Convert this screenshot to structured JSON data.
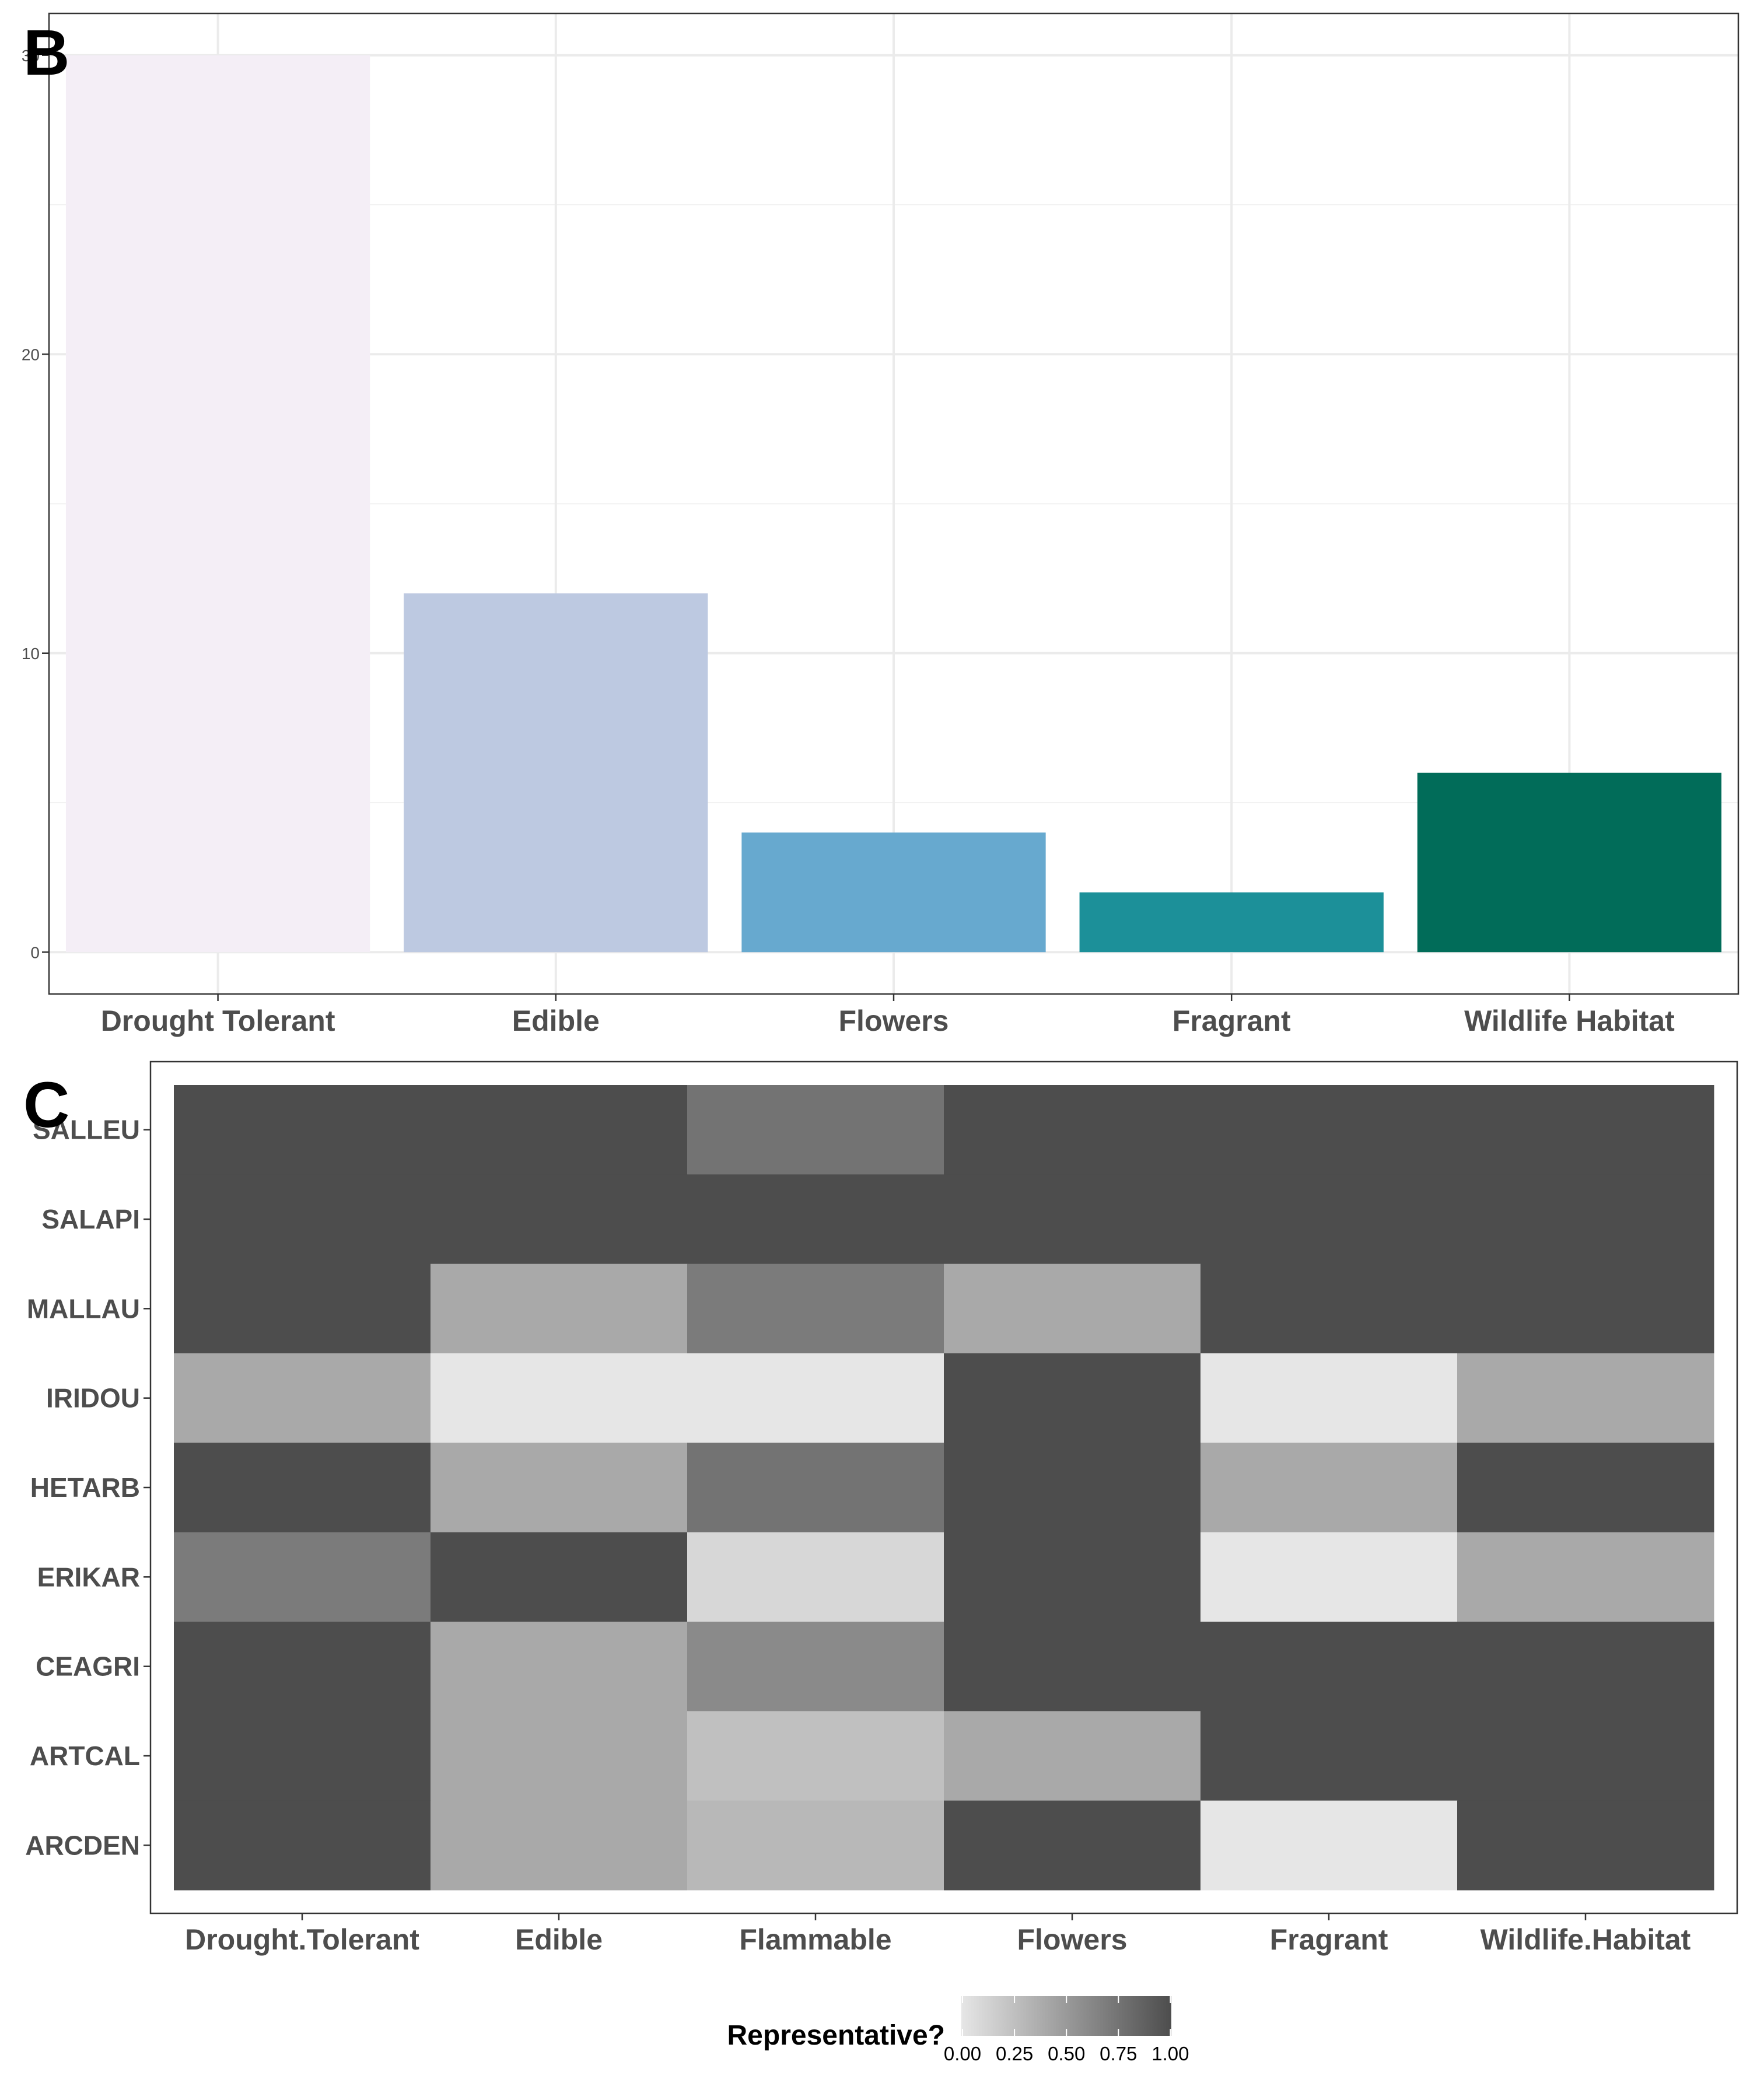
{
  "chart_data": [
    {
      "panel_label": "B",
      "type": "bar",
      "categories": [
        "Drought Tolerant",
        "Edible",
        "Flowers",
        "Fragrant",
        "Wildlife Habitat"
      ],
      "values": [
        30,
        12,
        4,
        2,
        6
      ],
      "colors": [
        "#f4eef6",
        "#bdc9e1",
        "#67a9cf",
        "#1c9099",
        "#016c59"
      ],
      "ylim": [
        -1.4,
        31.4
      ],
      "yticks": [
        0,
        10,
        20,
        30
      ],
      "ytick_labels": [
        "0",
        "10",
        "20",
        "30"
      ],
      "title": "",
      "xlabel": "",
      "ylabel": "",
      "grid": true
    },
    {
      "panel_label": "C",
      "type": "heatmap",
      "columns": [
        "Drought.Tolerant",
        "Edible",
        "Flammable",
        "Flowers",
        "Fragrant",
        "Wildlife.Habitat"
      ],
      "rows": [
        "SALLEU",
        "SALAPI",
        "MALLAU",
        "IRIDOU",
        "HETARB",
        "ERIKAR",
        "CEAGRI",
        "ARTCAL",
        "ARCDEN"
      ],
      "values": [
        [
          1.0,
          1.0,
          0.75,
          1.0,
          1.0,
          1.0
        ],
        [
          1.0,
          1.0,
          1.0,
          1.0,
          1.0,
          1.0
        ],
        [
          1.0,
          0.4,
          0.7,
          0.4,
          1.0,
          1.0
        ],
        [
          0.4,
          0.0,
          0.0,
          1.0,
          0.0,
          0.4
        ],
        [
          1.0,
          0.4,
          0.75,
          1.0,
          0.4,
          1.0
        ],
        [
          0.7,
          1.0,
          0.1,
          1.0,
          0.0,
          0.4
        ],
        [
          1.0,
          0.4,
          0.6,
          1.0,
          1.0,
          1.0
        ],
        [
          1.0,
          0.4,
          0.25,
          0.4,
          1.0,
          1.0
        ],
        [
          1.0,
          0.4,
          0.3,
          1.0,
          0.0,
          1.0
        ]
      ],
      "color_low": "#e6e6e6",
      "color_high": "#4d4d4d",
      "legend": {
        "title": "Representative?",
        "ticks": [
          0,
          0.25,
          0.5,
          0.75,
          1
        ],
        "tick_labels": [
          "0.00",
          "0.25",
          "0.50",
          "0.75",
          "1.00"
        ],
        "placement": "bottom"
      },
      "xlabel": "",
      "ylabel": ""
    }
  ]
}
